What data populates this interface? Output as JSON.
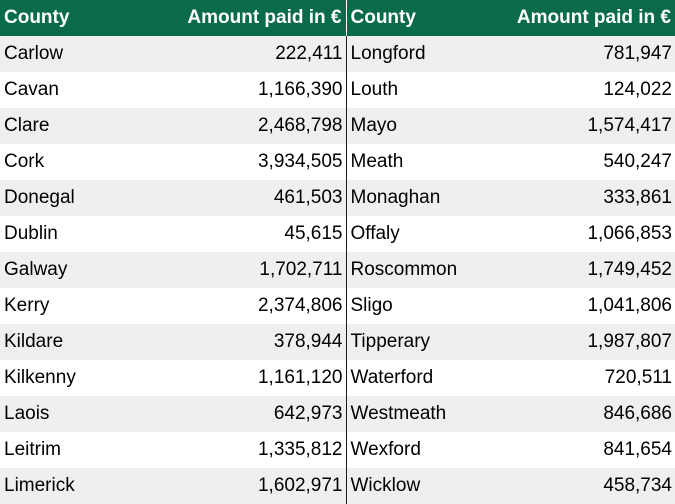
{
  "header": {
    "county": "County",
    "amount": "Amount paid in €"
  },
  "rows": [
    {
      "left": {
        "county": "Carlow",
        "amount": "222,411"
      },
      "right": {
        "county": "Longford",
        "amount": "781,947"
      }
    },
    {
      "left": {
        "county": "Cavan",
        "amount": "1,166,390"
      },
      "right": {
        "county": "Louth",
        "amount": "124,022"
      }
    },
    {
      "left": {
        "county": "Clare",
        "amount": "2,468,798"
      },
      "right": {
        "county": "Mayo",
        "amount": "1,574,417"
      }
    },
    {
      "left": {
        "county": "Cork",
        "amount": "3,934,505"
      },
      "right": {
        "county": "Meath",
        "amount": "540,247"
      }
    },
    {
      "left": {
        "county": "Donegal",
        "amount": "461,503"
      },
      "right": {
        "county": "Monaghan",
        "amount": "333,861"
      }
    },
    {
      "left": {
        "county": "Dublin",
        "amount": "45,615"
      },
      "right": {
        "county": "Offaly",
        "amount": "1,066,853"
      }
    },
    {
      "left": {
        "county": "Galway",
        "amount": "1,702,711"
      },
      "right": {
        "county": "Roscommon",
        "amount": "1,749,452"
      }
    },
    {
      "left": {
        "county": "Kerry",
        "amount": "2,374,806"
      },
      "right": {
        "county": "Sligo",
        "amount": "1,041,806"
      }
    },
    {
      "left": {
        "county": "Kildare",
        "amount": "378,944"
      },
      "right": {
        "county": "Tipperary",
        "amount": "1,987,807"
      }
    },
    {
      "left": {
        "county": "Kilkenny",
        "amount": "1,161,120"
      },
      "right": {
        "county": "Waterford",
        "amount": "720,511"
      }
    },
    {
      "left": {
        "county": "Laois",
        "amount": "642,973"
      },
      "right": {
        "county": "Westmeath",
        "amount": "846,686"
      }
    },
    {
      "left": {
        "county": "Leitrim",
        "amount": "1,335,812"
      },
      "right": {
        "county": "Wexford",
        "amount": "841,654"
      }
    },
    {
      "left": {
        "county": "Limerick",
        "amount": "1,602,971"
      },
      "right": {
        "county": "Wicklow",
        "amount": "458,734"
      }
    }
  ],
  "colors": {
    "header_background": "#0a6b4b",
    "header_text": "#ffffff",
    "row_stripe": "#efefef",
    "row_plain": "#ffffff"
  }
}
